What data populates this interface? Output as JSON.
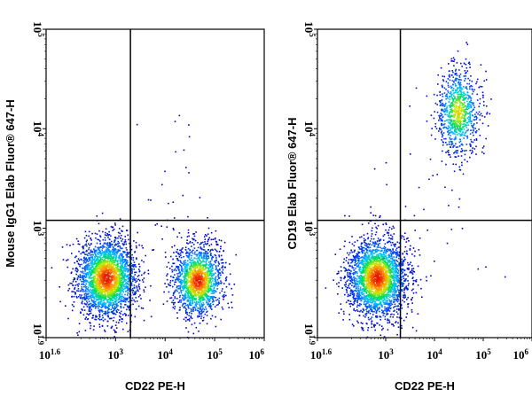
{
  "chart_data": [
    {
      "type": "scatter",
      "xlabel": "CD22 PE-H",
      "ylabel": "Mouse IgG1 Elab Fluor® 647-H",
      "xscale": "log",
      "yscale": "log",
      "xlim": [
        39.8,
        1000000
      ],
      "ylim": [
        79.4,
        100000
      ],
      "x_tick_values": [
        39.8,
        1000,
        10000,
        100000,
        1000000
      ],
      "x_tick_labels": [
        "10^1.6",
        "10^3",
        "10^4",
        "10^5",
        "10^6"
      ],
      "y_tick_values": [
        79.4,
        1000,
        10000,
        100000
      ],
      "y_tick_labels": [
        "10^1.9",
        "10^3",
        "10^4",
        "10^5"
      ],
      "gates": {
        "x": 2000,
        "y": 1200
      },
      "populations": [
        {
          "x_center": 650,
          "y_center": 320,
          "x_spread_decades": 0.3,
          "y_spread_decades": 0.2,
          "approx_events": 2600
        },
        {
          "x_center": 45000,
          "y_center": 300,
          "x_spread_decades": 0.25,
          "y_spread_decades": 0.18,
          "approx_events": 1600
        },
        {
          "x_center": 15000,
          "y_center": 2000,
          "x_spread_decades": 0.3,
          "y_spread_decades": 0.5,
          "approx_events": 30
        }
      ]
    },
    {
      "type": "scatter",
      "xlabel": "CD22 PE-H",
      "ylabel": "CD19 Elab Fluor® 647-H",
      "xscale": "log",
      "yscale": "log",
      "xlim": [
        39.8,
        1000000
      ],
      "ylim": [
        79.4,
        100000
      ],
      "x_tick_values": [
        39.8,
        1000,
        10000,
        100000,
        1000000
      ],
      "x_tick_labels": [
        "10^1.6",
        "10^3",
        "10^4",
        "10^5",
        "10^6"
      ],
      "y_tick_values": [
        79.4,
        1000,
        10000,
        100000
      ],
      "y_tick_labels": [
        "10^1.9",
        "10^3",
        "10^4",
        "10^5"
      ],
      "gates": {
        "x": 2000,
        "y": 1200
      },
      "populations": [
        {
          "x_center": 650,
          "y_center": 320,
          "x_spread_decades": 0.3,
          "y_spread_decades": 0.2,
          "approx_events": 2600
        },
        {
          "x_center": 30000,
          "y_center": 15000,
          "x_spread_decades": 0.22,
          "y_spread_decades": 0.22,
          "approx_events": 900
        },
        {
          "x_center": 8000,
          "y_center": 1200,
          "x_spread_decades": 0.6,
          "y_spread_decades": 0.6,
          "approx_events": 40
        }
      ]
    }
  ]
}
